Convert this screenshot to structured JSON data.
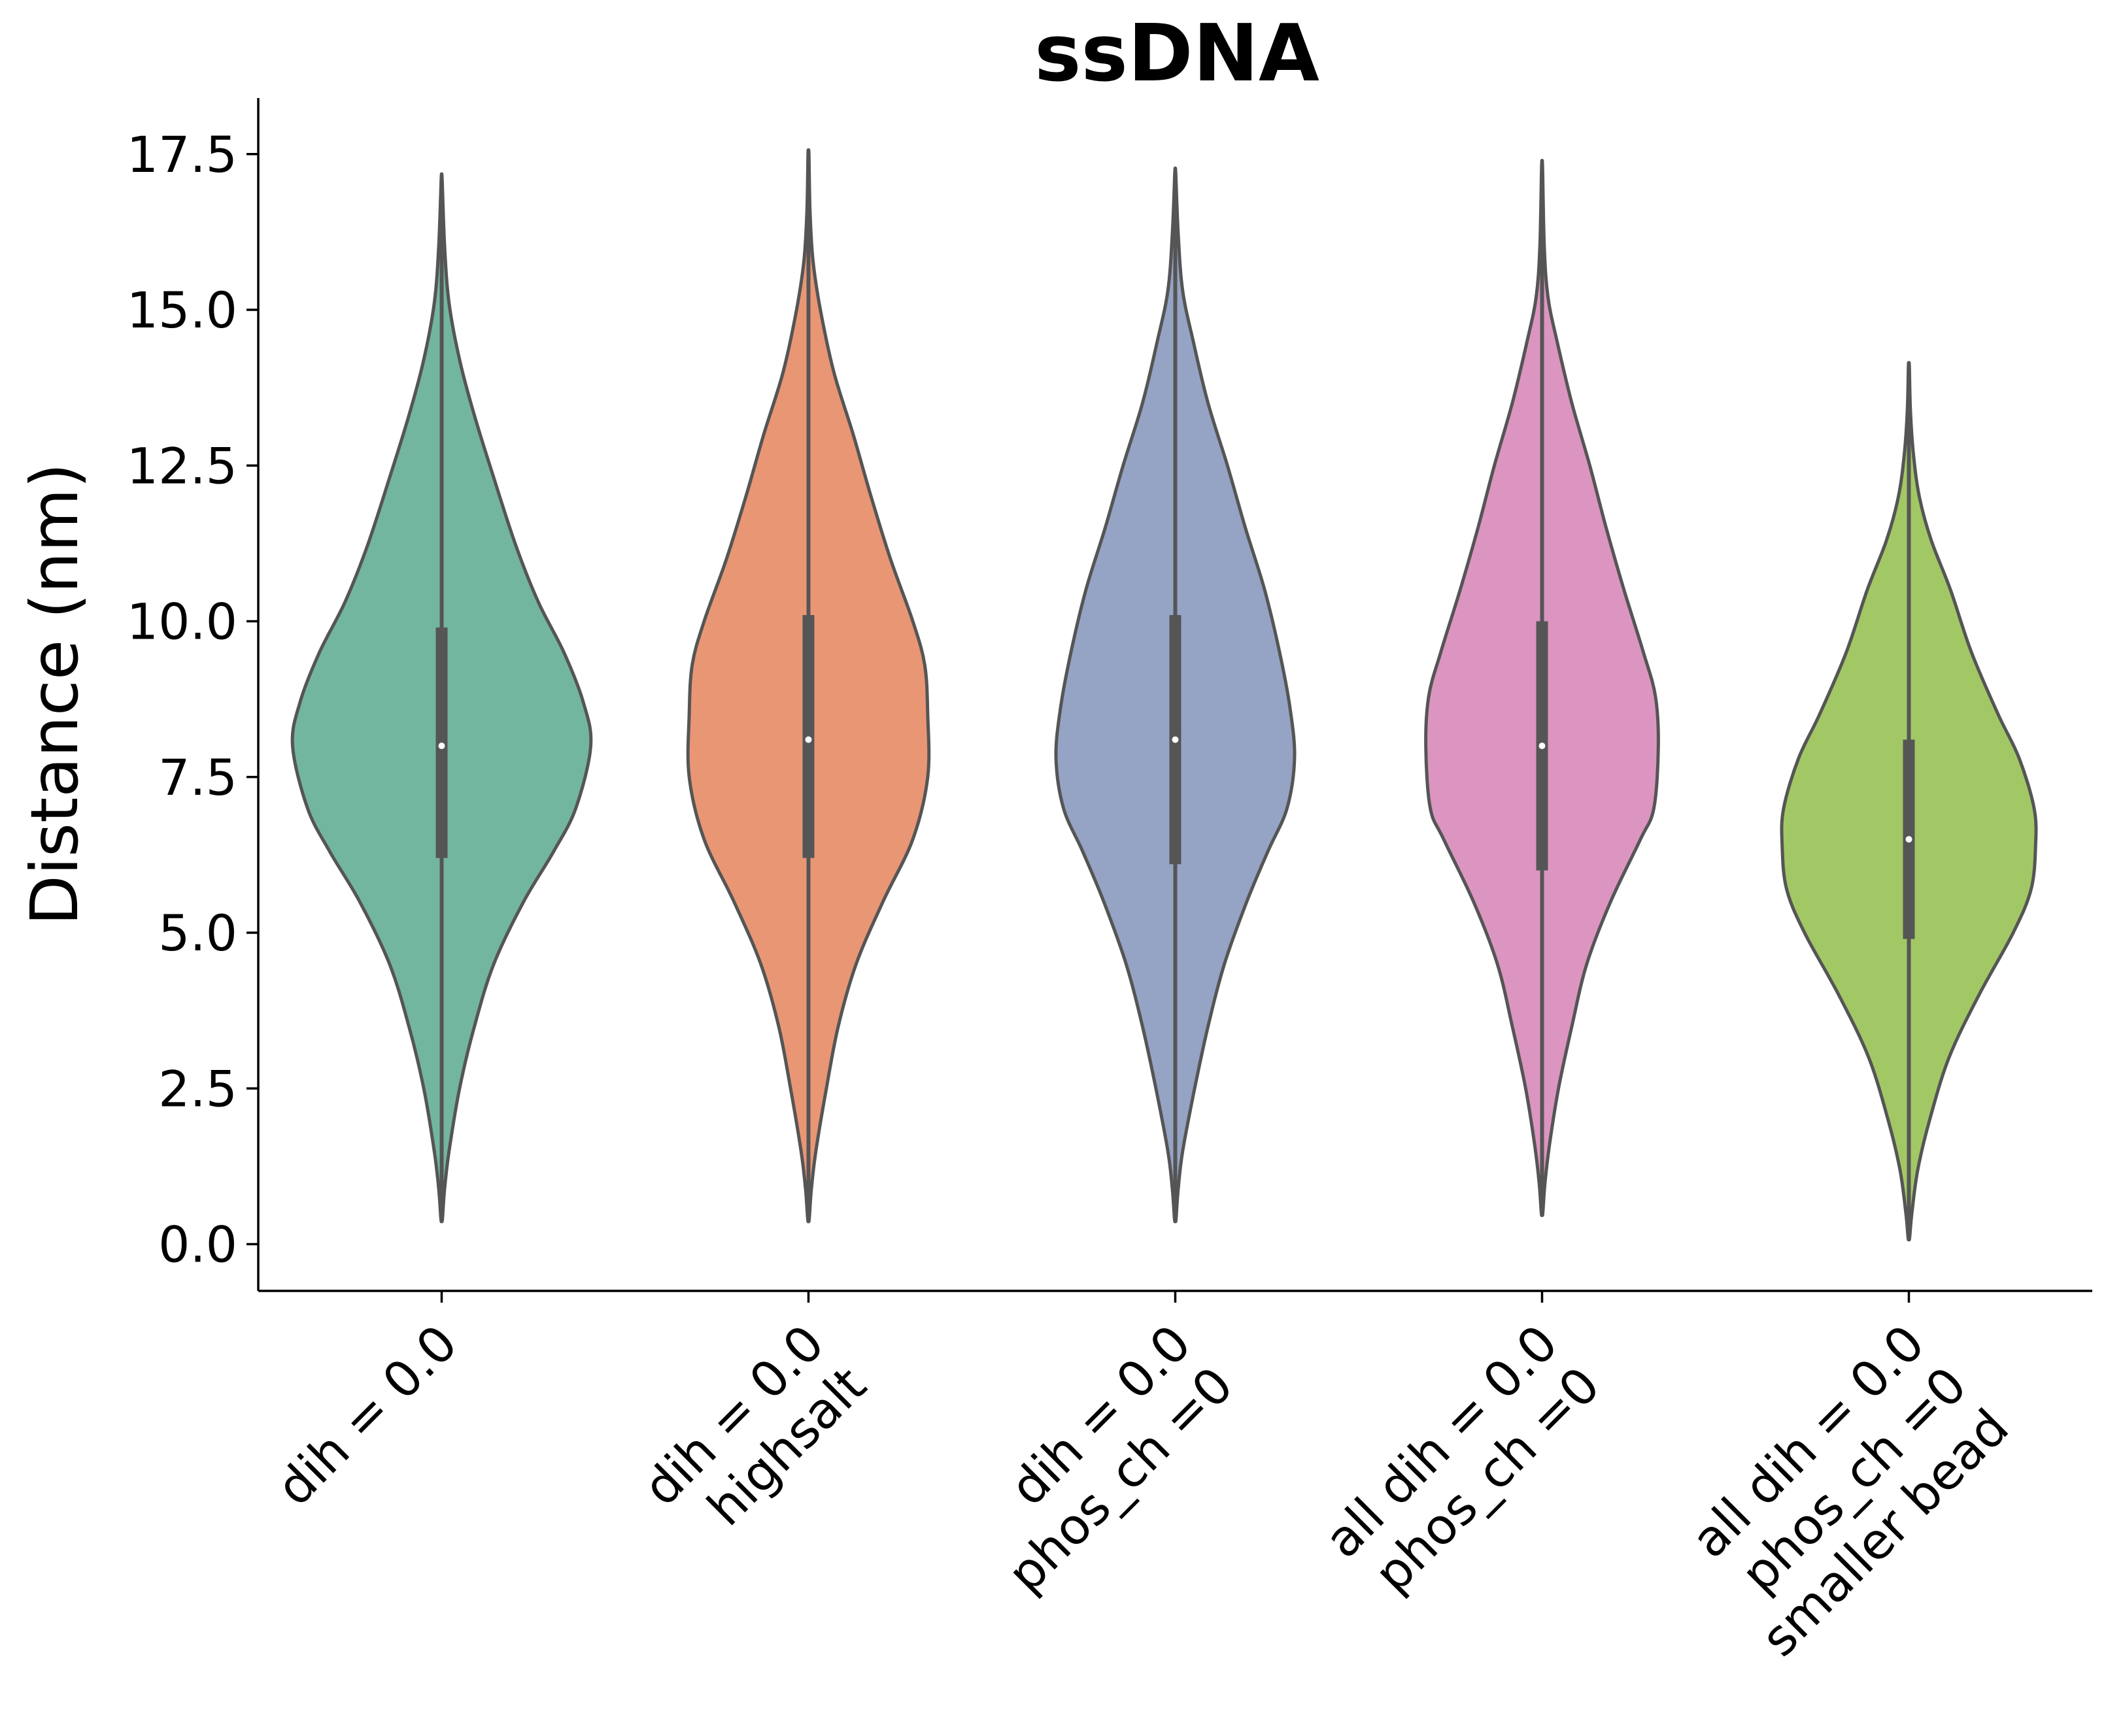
{
  "chart_data": {
    "type": "violin",
    "title": "ssDNA",
    "xlabel": "",
    "ylabel": "Distance (nm)",
    "ylim": [
      -0.75,
      18.4
    ],
    "yticks": [
      "0.0",
      "2.5",
      "5.0",
      "7.5",
      "10.0",
      "12.5",
      "15.0",
      "17.5"
    ],
    "ytick_values": [
      0,
      2.5,
      5,
      7.5,
      10,
      12.5,
      15,
      17.5
    ],
    "grid": false,
    "legend": "none",
    "categories": [
      [
        "dih = 0.0"
      ],
      [
        "dih = 0.0",
        "highsalt"
      ],
      [
        "dih = 0.0",
        "phos_ch =0"
      ],
      [
        "all dih = 0.0",
        "phos_ch =0"
      ],
      [
        "all dih = 0.0",
        "phos_ch =0",
        "smaller bead"
      ]
    ],
    "colors": [
      "#73b6a0",
      "#e99675",
      "#95a4c4",
      "#dc95c0",
      "#a2c865"
    ],
    "outline_color": "#555555",
    "series": [
      {
        "min": 0.4,
        "q1": 6.2,
        "median": 8.0,
        "q3": 9.9,
        "max": 17.1,
        "density": [
          [
            0.4,
            0.005
          ],
          [
            0.9,
            0.02
          ],
          [
            1.5,
            0.05
          ],
          [
            2.5,
            0.12
          ],
          [
            3.5,
            0.22
          ],
          [
            4.5,
            0.35
          ],
          [
            5.5,
            0.55
          ],
          [
            6.3,
            0.75
          ],
          [
            7.0,
            0.9
          ],
          [
            8.0,
            1.0
          ],
          [
            8.7,
            0.95
          ],
          [
            9.5,
            0.82
          ],
          [
            10.3,
            0.65
          ],
          [
            11.2,
            0.5
          ],
          [
            12.3,
            0.35
          ],
          [
            13.3,
            0.22
          ],
          [
            14.2,
            0.12
          ],
          [
            15.1,
            0.05
          ],
          [
            16.0,
            0.02
          ],
          [
            17.1,
            0.003
          ]
        ]
      },
      {
        "min": 0.4,
        "q1": 6.2,
        "median": 8.1,
        "q3": 10.1,
        "max": 17.5,
        "density": [
          [
            0.4,
            0.005
          ],
          [
            0.9,
            0.02
          ],
          [
            1.5,
            0.05
          ],
          [
            2.5,
            0.12
          ],
          [
            3.5,
            0.2
          ],
          [
            4.5,
            0.32
          ],
          [
            5.5,
            0.5
          ],
          [
            6.5,
            0.7
          ],
          [
            7.5,
            0.8
          ],
          [
            8.5,
            0.8
          ],
          [
            9.3,
            0.78
          ],
          [
            10.0,
            0.7
          ],
          [
            11.0,
            0.55
          ],
          [
            12.0,
            0.42
          ],
          [
            13.0,
            0.3
          ],
          [
            14.0,
            0.17
          ],
          [
            15.0,
            0.08
          ],
          [
            15.8,
            0.03
          ],
          [
            16.6,
            0.01
          ],
          [
            17.5,
            0.003
          ]
        ]
      },
      {
        "min": 0.4,
        "q1": 6.1,
        "median": 8.1,
        "q3": 10.1,
        "max": 17.2,
        "density": [
          [
            0.4,
            0.005
          ],
          [
            0.9,
            0.02
          ],
          [
            1.5,
            0.05
          ],
          [
            2.5,
            0.13
          ],
          [
            3.5,
            0.22
          ],
          [
            4.5,
            0.33
          ],
          [
            5.5,
            0.48
          ],
          [
            6.3,
            0.62
          ],
          [
            7.0,
            0.75
          ],
          [
            7.8,
            0.8
          ],
          [
            8.6,
            0.77
          ],
          [
            9.5,
            0.7
          ],
          [
            10.5,
            0.6
          ],
          [
            11.5,
            0.47
          ],
          [
            12.5,
            0.35
          ],
          [
            13.5,
            0.22
          ],
          [
            14.5,
            0.12
          ],
          [
            15.3,
            0.05
          ],
          [
            16.2,
            0.02
          ],
          [
            17.2,
            0.003
          ]
        ]
      },
      {
        "min": 0.5,
        "q1": 6.0,
        "median": 8.0,
        "q3": 10.0,
        "max": 17.3,
        "density": [
          [
            0.5,
            0.005
          ],
          [
            1.0,
            0.02
          ],
          [
            1.6,
            0.05
          ],
          [
            2.5,
            0.11
          ],
          [
            3.5,
            0.2
          ],
          [
            4.5,
            0.3
          ],
          [
            5.5,
            0.46
          ],
          [
            6.5,
            0.66
          ],
          [
            7.0,
            0.75
          ],
          [
            8.0,
            0.78
          ],
          [
            8.8,
            0.76
          ],
          [
            9.5,
            0.68
          ],
          [
            10.5,
            0.55
          ],
          [
            11.5,
            0.43
          ],
          [
            12.5,
            0.32
          ],
          [
            13.5,
            0.2
          ],
          [
            14.5,
            0.1
          ],
          [
            15.2,
            0.04
          ],
          [
            16.0,
            0.015
          ],
          [
            17.3,
            0.003
          ]
        ]
      },
      {
        "min": 0.1,
        "q1": 4.9,
        "median": 6.5,
        "q3": 8.1,
        "max": 14.1,
        "density": [
          [
            0.1,
            0.005
          ],
          [
            0.5,
            0.02
          ],
          [
            1.2,
            0.06
          ],
          [
            2.0,
            0.14
          ],
          [
            3.0,
            0.27
          ],
          [
            4.0,
            0.47
          ],
          [
            5.0,
            0.7
          ],
          [
            5.7,
            0.82
          ],
          [
            6.4,
            0.85
          ],
          [
            7.0,
            0.84
          ],
          [
            7.8,
            0.74
          ],
          [
            8.5,
            0.6
          ],
          [
            9.5,
            0.42
          ],
          [
            10.5,
            0.28
          ],
          [
            11.3,
            0.15
          ],
          [
            12.0,
            0.07
          ],
          [
            12.7,
            0.03
          ],
          [
            13.4,
            0.01
          ],
          [
            14.1,
            0.003
          ]
        ]
      }
    ]
  }
}
